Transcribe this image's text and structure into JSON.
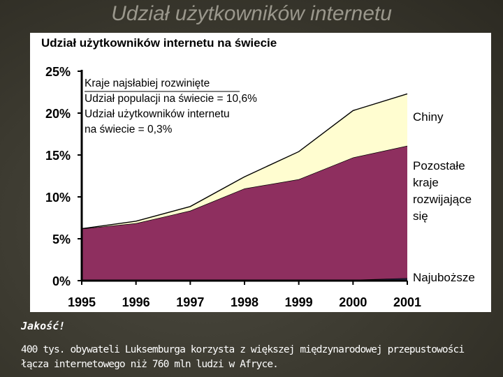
{
  "slide": {
    "title": "Udział użytkowników internetu",
    "caption_emphasis": "Jakość!",
    "caption_text": "400 tys. obywateli Luksemburga korzysta z większej międzynarodowej przepustowości łącza internetowego niż 760 mln ludzi w Afryce."
  },
  "colors": {
    "background": "#3b392f",
    "china_fill": "#fffdd0",
    "other_developing_fill": "#8e2f5f",
    "poorest_fill": "#2b2b55",
    "axis": "#000000"
  },
  "chart_data": {
    "type": "area",
    "title": "Udział użytkowników internetu na świecie",
    "xlabel": "",
    "ylabel": "",
    "x": [
      "1995",
      "1996",
      "1997",
      "1998",
      "1999",
      "2000",
      "2001"
    ],
    "ylim": [
      0,
      25
    ],
    "yticks": [
      "0%",
      "5%",
      "10%",
      "15%",
      "20%",
      "25%"
    ],
    "stacked": true,
    "series": [
      {
        "name": "Najuboższe",
        "values": [
          0.0,
          0.05,
          0.05,
          0.1,
          0.1,
          0.1,
          0.3
        ]
      },
      {
        "name": "Pozostałe kraje rozwijające się",
        "values": [
          6.2,
          6.8,
          8.3,
          10.9,
          12.0,
          14.6,
          15.8
        ]
      },
      {
        "name": "Chiny",
        "values": [
          0.0,
          0.25,
          0.5,
          1.4,
          3.3,
          5.6,
          6.2
        ]
      }
    ],
    "series_labels": {
      "china": "Chiny",
      "other": [
        "Pozostałe",
        "kraje",
        "rozwijające",
        "się"
      ],
      "poorest": "Najuboższe"
    },
    "annotation": [
      "Kraje najsłabiej rozwinięte",
      "Udział populacji na świecie = 10,6%",
      "Udział użytkowników internetu",
      "na świecie = 0,3%"
    ],
    "grid": false,
    "legend": "right"
  }
}
